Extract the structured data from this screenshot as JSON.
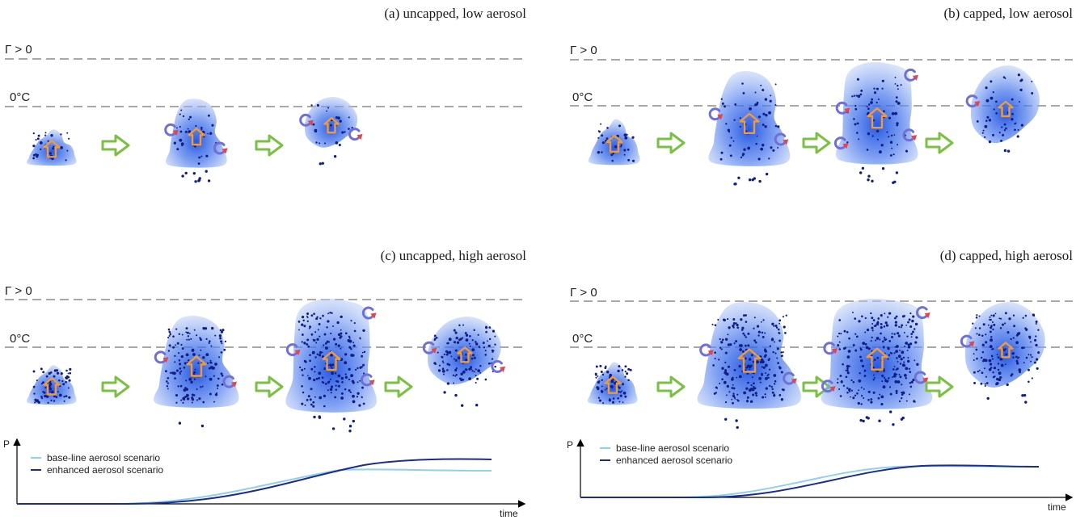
{
  "panels": [
    {
      "id": "a",
      "title": "(a) uncapped, low aerosol",
      "gamma_label": "Γ > 0",
      "freezing_label": "0°C",
      "aerosol": "low",
      "capped": false
    },
    {
      "id": "b",
      "title": "(b) capped, low aerosol",
      "gamma_label": "Γ > 0",
      "freezing_label": "0°C",
      "aerosol": "low",
      "capped": true
    },
    {
      "id": "c",
      "title": "(c) uncapped, high aerosol",
      "gamma_label": "Γ > 0",
      "freezing_label": "0°C",
      "aerosol": "high",
      "capped": false
    },
    {
      "id": "d",
      "title": "(d) capped, high aerosol",
      "gamma_label": "Γ > 0",
      "freezing_label": "0°C",
      "aerosol": "high",
      "capped": true
    }
  ],
  "precip_plots": [
    {
      "id": "uncapped",
      "y_label": "P",
      "x_label": "time",
      "legend": [
        "base-line aerosol scenario",
        "enhanced aerosol scenario"
      ]
    },
    {
      "id": "capped",
      "y_label": "P",
      "x_label": "time",
      "legend": [
        "base-line aerosol scenario",
        "enhanced aerosol scenario"
      ]
    }
  ],
  "colors": {
    "cloud": "#5a86ee",
    "cloud_core": "#1a4fe0",
    "droplet": "#101e86",
    "updraft": "#ef9a3c",
    "time_arrow": "#7ac143",
    "entrainment": "#6f6fd8",
    "entrainment_tip": "#e8424b",
    "level_line": "#a8a8a8",
    "baseline_curve": "#8fd0ec",
    "enhanced_curve": "#1c2b8c"
  }
}
